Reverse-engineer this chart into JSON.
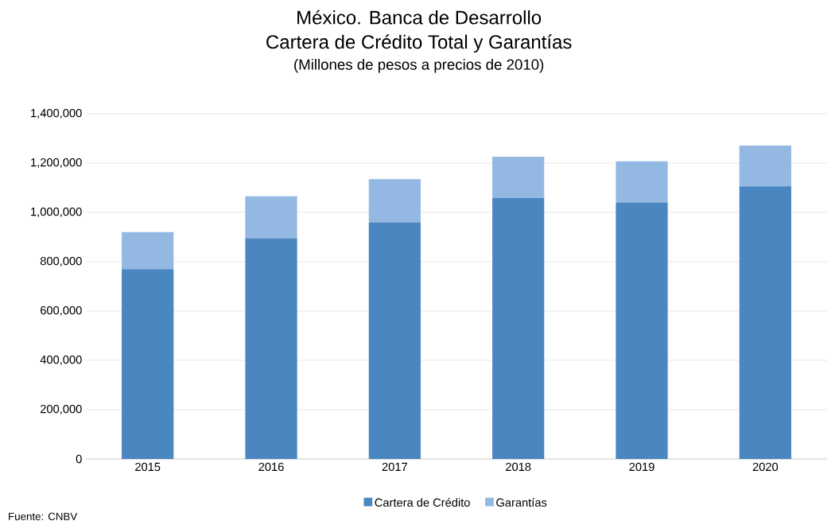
{
  "chart_data": {
    "type": "bar",
    "title": "México. Banca de Desarrollo",
    "subtitle": "Cartera de Crédito Total y Garantías",
    "annotations": [
      "(Millones de pesos a precios de 2010)",
      "Fuente: CNBV"
    ],
    "categories": [
      "2015",
      "2016",
      "2017",
      "2018",
      "2019",
      "2020"
    ],
    "stacked": true,
    "series": [
      {
        "name": "Cartera de Crédito",
        "color": "#4a86c0",
        "values": [
          770000,
          895000,
          960000,
          1058000,
          1040000,
          1106000
        ]
      },
      {
        "name": "Garantías",
        "color": "#93b9e3",
        "values": [
          150000,
          170000,
          175000,
          168000,
          167000,
          165000
        ]
      }
    ],
    "ylim": [
      0,
      1400000
    ],
    "yticks": [
      0,
      {
        "value": 200000,
        "label": "200,000"
      },
      {
        "value": 400000,
        "label": "400,000"
      },
      {
        "value": 600000,
        "label": "600,000"
      },
      {
        "value": 800000,
        "label": "800,000"
      },
      {
        "value": 1000000,
        "label": "1,000,000"
      },
      {
        "value": 1200000,
        "label": "1,200,000"
      },
      {
        "value": 1400000,
        "label": "1,400,000"
      }
    ],
    "grid": "y",
    "legend": "bottom"
  }
}
